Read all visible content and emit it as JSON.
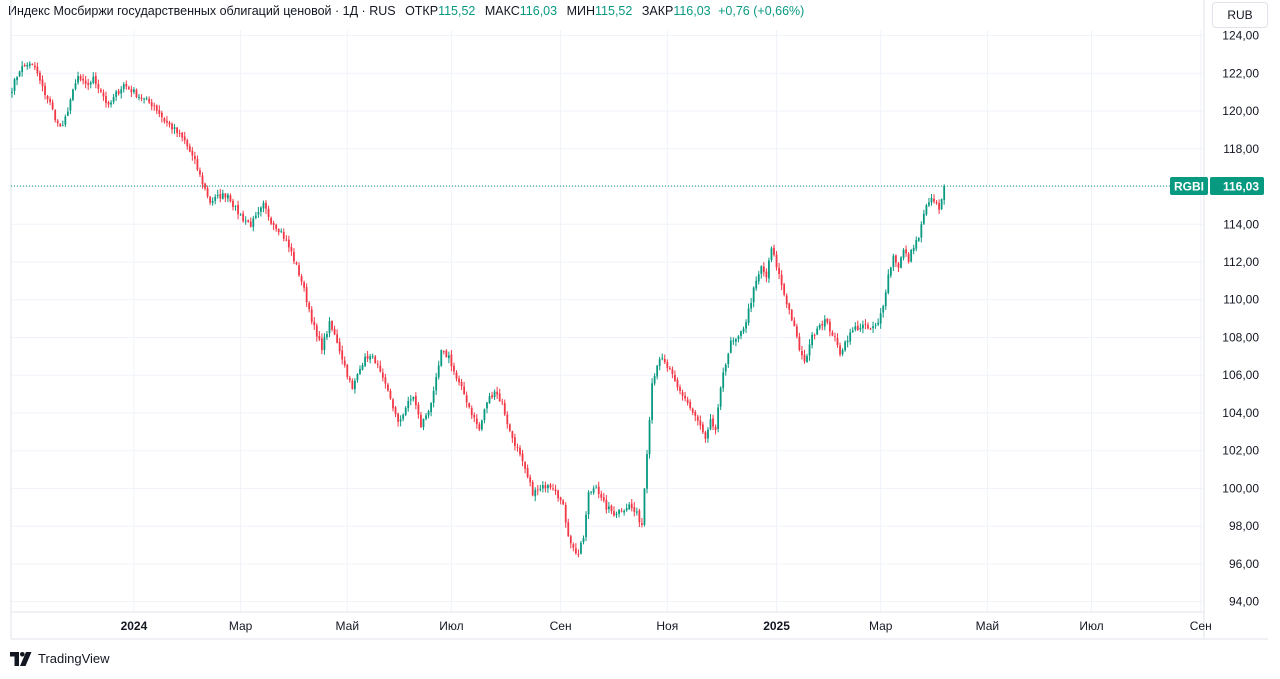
{
  "header": {
    "title": "Индекс Мосбиржи государственных облигаций ценовой",
    "interval": "1Д",
    "exchange": "RUS",
    "open_label": "ОТКР",
    "open_value": "115,52",
    "high_label": "МАКС",
    "high_value": "116,03",
    "low_label": "МИН",
    "low_value": "115,52",
    "close_label": "ЗАКР",
    "close_value": "116,03",
    "change": "+0,76 (+0,66%)"
  },
  "currency_button": "RUB",
  "last_price": {
    "symbol": "RGBI",
    "value": "116,03",
    "price": 116.03
  },
  "branding": {
    "text": "TradingView"
  },
  "colors": {
    "up": "#089981",
    "down": "#f23645",
    "grid": "#f0f3fa",
    "axis_text": "#131722",
    "price_line": "#089981"
  },
  "chart_data": {
    "type": "candlestick",
    "title": "Индекс Мосбиржи государственных облигаций ценовой · 1Д · RUS",
    "ylim": [
      93.4,
      124.4
    ],
    "yticks": [
      94,
      96,
      98,
      100,
      102,
      104,
      106,
      108,
      110,
      112,
      114,
      116,
      118,
      120,
      122,
      124
    ],
    "ytick_labels": [
      "94,00",
      "96,00",
      "98,00",
      "100,00",
      "102,00",
      "104,00",
      "106,00",
      "108,00",
      "110,00",
      "112,00",
      "114,00",
      "116,00",
      "118,00",
      "120,00",
      "122,00",
      "124,00"
    ],
    "x_ticks": [
      {
        "label": "2024",
        "index": 48,
        "bold": true
      },
      {
        "label": "Мар",
        "index": 90,
        "bold": false
      },
      {
        "label": "Май",
        "index": 132,
        "bold": false
      },
      {
        "label": "Июл",
        "index": 173,
        "bold": false
      },
      {
        "label": "Сен",
        "index": 216,
        "bold": false
      },
      {
        "label": "Ноя",
        "index": 258,
        "bold": false
      },
      {
        "label": "2025",
        "index": 301,
        "bold": true
      },
      {
        "label": "Мар",
        "index": 342,
        "bold": false
      },
      {
        "label": "Май",
        "index": 384,
        "bold": false
      },
      {
        "label": "Июл",
        "index": 425,
        "bold": false
      },
      {
        "label": "Сен",
        "index": 468,
        "bold": false
      }
    ],
    "total_slots": 477,
    "close_anchors": [
      [
        0,
        121.2
      ],
      [
        3,
        122.2
      ],
      [
        6,
        122.5
      ],
      [
        9,
        122.3
      ],
      [
        12,
        121.2
      ],
      [
        15,
        120.4
      ],
      [
        18,
        119.3
      ],
      [
        20,
        119.1
      ],
      [
        23,
        120.6
      ],
      [
        26,
        121.8
      ],
      [
        29,
        121.3
      ],
      [
        32,
        121.7
      ],
      [
        35,
        121.1
      ],
      [
        38,
        120.2
      ],
      [
        41,
        120.9
      ],
      [
        44,
        121.4
      ],
      [
        48,
        121.0
      ],
      [
        52,
        120.6
      ],
      [
        56,
        120.3
      ],
      [
        60,
        119.5
      ],
      [
        64,
        119.0
      ],
      [
        68,
        118.4
      ],
      [
        72,
        117.3
      ],
      [
        75,
        116.2
      ],
      [
        78,
        115.2
      ],
      [
        82,
        115.5
      ],
      [
        85,
        115.6
      ],
      [
        88,
        114.8
      ],
      [
        91,
        114.3
      ],
      [
        94,
        114.0
      ],
      [
        97,
        114.5
      ],
      [
        99,
        115.0
      ],
      [
        102,
        114.2
      ],
      [
        106,
        113.6
      ],
      [
        110,
        112.5
      ],
      [
        114,
        111.0
      ],
      [
        117,
        109.5
      ],
      [
        120,
        108.0
      ],
      [
        122,
        107.5
      ],
      [
        125,
        108.7
      ],
      [
        128,
        107.8
      ],
      [
        131,
        106.5
      ],
      [
        134,
        105.2
      ],
      [
        137,
        106.5
      ],
      [
        140,
        107.0
      ],
      [
        143,
        106.8
      ],
      [
        146,
        105.7
      ],
      [
        149,
        104.8
      ],
      [
        152,
        103.4
      ],
      [
        155,
        104.3
      ],
      [
        158,
        104.9
      ],
      [
        161,
        103.3
      ],
      [
        164,
        104.2
      ],
      [
        166,
        105.0
      ],
      [
        169,
        107.2
      ],
      [
        172,
        107.0
      ],
      [
        175,
        105.8
      ],
      [
        178,
        105.0
      ],
      [
        181,
        104.0
      ],
      [
        184,
        103.1
      ],
      [
        187,
        104.6
      ],
      [
        190,
        105.2
      ],
      [
        193,
        104.5
      ],
      [
        196,
        103.0
      ],
      [
        199,
        102.1
      ],
      [
        202,
        100.9
      ],
      [
        205,
        99.8
      ],
      [
        208,
        99.9
      ],
      [
        211,
        100.3
      ],
      [
        214,
        100.0
      ],
      [
        217,
        99.0
      ],
      [
        219,
        97.6
      ],
      [
        221,
        96.8
      ],
      [
        223,
        96.5
      ],
      [
        225,
        97.4
      ],
      [
        227,
        99.7
      ],
      [
        230,
        100.2
      ],
      [
        232,
        99.4
      ],
      [
        234,
        99.0
      ],
      [
        237,
        98.7
      ],
      [
        240,
        98.9
      ],
      [
        243,
        99.1
      ],
      [
        246,
        98.6
      ],
      [
        248,
        98.1
      ],
      [
        250,
        102.0
      ],
      [
        252,
        105.6
      ],
      [
        254,
        106.6
      ],
      [
        256,
        106.8
      ],
      [
        259,
        106.2
      ],
      [
        262,
        105.3
      ],
      [
        265,
        104.8
      ],
      [
        268,
        104.0
      ],
      [
        271,
        103.3
      ],
      [
        273,
        102.5
      ],
      [
        275,
        103.5
      ],
      [
        277,
        103.1
      ],
      [
        280,
        106.2
      ],
      [
        283,
        107.7
      ],
      [
        286,
        107.9
      ],
      [
        289,
        108.9
      ],
      [
        292,
        110.5
      ],
      [
        295,
        111.7
      ],
      [
        297,
        111.2
      ],
      [
        299,
        112.7
      ],
      [
        301,
        111.8
      ],
      [
        304,
        110.3
      ],
      [
        307,
        109.0
      ],
      [
        310,
        107.4
      ],
      [
        312,
        106.6
      ],
      [
        314,
        107.7
      ],
      [
        317,
        108.6
      ],
      [
        320,
        108.9
      ],
      [
        323,
        108.2
      ],
      [
        326,
        107.2
      ],
      [
        329,
        108.0
      ],
      [
        332,
        108.5
      ],
      [
        335,
        108.6
      ],
      [
        338,
        108.4
      ],
      [
        341,
        108.7
      ],
      [
        343,
        109.8
      ],
      [
        345,
        111.3
      ],
      [
        347,
        112.3
      ],
      [
        349,
        111.8
      ],
      [
        351,
        112.6
      ],
      [
        353,
        112.1
      ],
      [
        355,
        112.9
      ],
      [
        357,
        113.3
      ],
      [
        359,
        114.5
      ],
      [
        361,
        115.3
      ],
      [
        363,
        115.2
      ],
      [
        365,
        114.8
      ],
      [
        366,
        115.2
      ],
      [
        367,
        116.03
      ]
    ],
    "last_index": 367
  }
}
